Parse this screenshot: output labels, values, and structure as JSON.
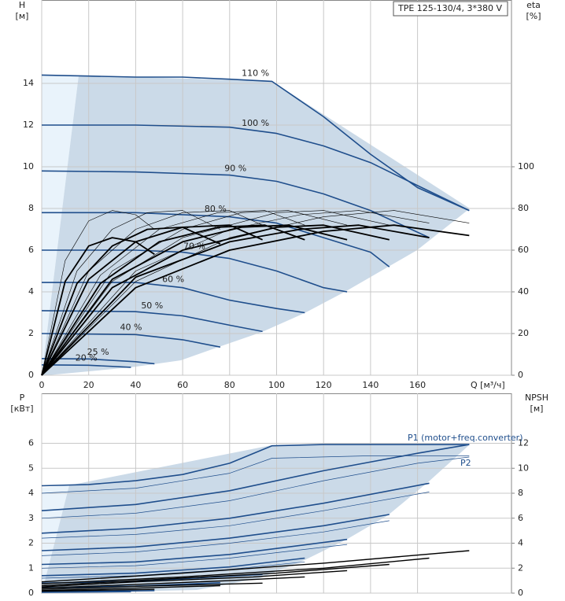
{
  "chart_data": [
    {
      "type": "line",
      "title": "TPE 125-130/4, 3*380 V",
      "ylabel": "H",
      "yunit": "[м]",
      "y2label": "eta",
      "y2unit": "[%]",
      "xlabel": "Q [м³/ч]",
      "xlim": [
        0,
        200
      ],
      "xticks": [
        0,
        20,
        40,
        60,
        80,
        100,
        120,
        140,
        160
      ],
      "ylim": [
        0,
        18
      ],
      "yticks": [
        0,
        2,
        4,
        6,
        8,
        10,
        12,
        14
      ],
      "y2lim": [
        0,
        180
      ],
      "y2ticks": [
        0,
        20,
        40,
        60,
        80,
        100
      ],
      "grid": true,
      "series": [
        {
          "name": "110 %",
          "color": "#1f4e8c",
          "line_width": 1.6,
          "x": [
            0,
            20,
            40,
            60,
            80,
            98,
            120,
            140,
            160,
            182
          ],
          "values": [
            14.4,
            14.35,
            14.3,
            14.3,
            14.2,
            14.1,
            12.4,
            10.6,
            9,
            7.9
          ]
        },
        {
          "name": "100 %",
          "color": "#1f4e8c",
          "line_width": 1.6,
          "x": [
            0,
            40,
            80,
            100,
            120,
            140,
            160,
            182
          ],
          "values": [
            12,
            12,
            11.9,
            11.6,
            11,
            10.2,
            9.1,
            7.9
          ]
        },
        {
          "name": "90 %",
          "color": "#1f4e8c",
          "line_width": 1.6,
          "x": [
            0,
            40,
            80,
            100,
            120,
            140,
            165
          ],
          "values": [
            9.8,
            9.75,
            9.6,
            9.3,
            8.7,
            7.9,
            6.6
          ]
        },
        {
          "name": "80 %",
          "color": "#1f4e8c",
          "line_width": 1.6,
          "x": [
            0,
            40,
            80,
            100,
            120,
            140,
            148
          ],
          "values": [
            7.8,
            7.8,
            7.6,
            7.3,
            6.6,
            5.9,
            5.2
          ]
        },
        {
          "name": "70 %",
          "color": "#1f4e8c",
          "line_width": 1.6,
          "x": [
            0,
            40,
            60,
            80,
            100,
            120,
            130
          ],
          "values": [
            6,
            6,
            5.9,
            5.6,
            5,
            4.2,
            4
          ]
        },
        {
          "name": "60 %",
          "color": "#1f4e8c",
          "line_width": 1.6,
          "x": [
            0,
            40,
            60,
            80,
            100,
            112
          ],
          "values": [
            4.45,
            4.45,
            4.2,
            3.6,
            3.2,
            3
          ]
        },
        {
          "name": "50 %",
          "color": "#1f4e8c",
          "line_width": 1.6,
          "x": [
            0,
            40,
            60,
            80,
            94
          ],
          "values": [
            3.1,
            3.05,
            2.85,
            2.4,
            2.1
          ]
        },
        {
          "name": "40 %",
          "color": "#1f4e8c",
          "line_width": 1.6,
          "x": [
            0,
            40,
            60,
            76
          ],
          "values": [
            2,
            1.95,
            1.7,
            1.35
          ]
        },
        {
          "name": "25 %",
          "color": "#1f4e8c",
          "line_width": 1.6,
          "x": [
            0,
            20,
            40,
            48
          ],
          "values": [
            0.8,
            0.78,
            0.65,
            0.55
          ]
        },
        {
          "name": "20 %",
          "color": "#1f4e8c",
          "line_width": 1.6,
          "x": [
            0,
            20,
            38
          ],
          "values": [
            0.5,
            0.48,
            0.38
          ]
        },
        {
          "axis": "y2",
          "color": "#000000",
          "line_width": 0.6,
          "x": [
            0,
            40,
            80,
            120,
            150,
            182
          ],
          "values": [
            0,
            45,
            66,
            76,
            79,
            73
          ]
        },
        {
          "axis": "y2",
          "color": "#000000",
          "line_width": 0.6,
          "x": [
            0,
            40,
            80,
            110,
            135,
            165
          ],
          "values": [
            0,
            50,
            70,
            77,
            79,
            73
          ]
        },
        {
          "axis": "y2",
          "color": "#000000",
          "line_width": 0.6,
          "x": [
            0,
            30,
            60,
            100,
            120,
            148
          ],
          "values": [
            0,
            45,
            66,
            78,
            79,
            72
          ]
        },
        {
          "axis": "y2",
          "color": "#000000",
          "line_width": 0.6,
          "x": [
            0,
            30,
            60,
            85,
            105,
            130
          ],
          "values": [
            0,
            50,
            70,
            78,
            79,
            72
          ]
        },
        {
          "axis": "y2",
          "color": "#000000",
          "line_width": 0.6,
          "x": [
            0,
            25,
            50,
            75,
            95,
            112
          ],
          "values": [
            0,
            48,
            70,
            78,
            79,
            72
          ]
        },
        {
          "axis": "y2",
          "color": "#000000",
          "line_width": 0.6,
          "x": [
            0,
            20,
            40,
            60,
            80,
            94
          ],
          "values": [
            0,
            50,
            70,
            78,
            79,
            72
          ]
        },
        {
          "axis": "y2",
          "color": "#000000",
          "line_width": 0.6,
          "x": [
            0,
            15,
            30,
            45,
            60,
            76
          ],
          "values": [
            0,
            50,
            70,
            78,
            79,
            70
          ]
        },
        {
          "axis": "y2",
          "color": "#000000",
          "line_width": 0.6,
          "x": [
            0,
            10,
            20,
            30,
            40,
            48
          ],
          "values": [
            0,
            55,
            74,
            79,
            77,
            70
          ]
        },
        {
          "axis": "y2",
          "color": "#000000",
          "line_width": 1.8,
          "x": [
            0,
            40,
            80,
            120,
            150,
            182
          ],
          "values": [
            0,
            42,
            60,
            69,
            72,
            67
          ]
        },
        {
          "axis": "y2",
          "color": "#000000",
          "line_width": 1.8,
          "x": [
            0,
            40,
            80,
            110,
            135,
            165
          ],
          "values": [
            0,
            47,
            64,
            70,
            72,
            66
          ]
        },
        {
          "axis": "y2",
          "color": "#000000",
          "line_width": 1.8,
          "x": [
            0,
            30,
            60,
            100,
            120,
            148
          ],
          "values": [
            0,
            42,
            60,
            71,
            72,
            65
          ]
        },
        {
          "axis": "y2",
          "color": "#000000",
          "line_width": 1.8,
          "x": [
            0,
            30,
            60,
            85,
            105,
            130
          ],
          "values": [
            0,
            46,
            64,
            71,
            72,
            65
          ]
        },
        {
          "axis": "y2",
          "color": "#000000",
          "line_width": 1.8,
          "x": [
            0,
            25,
            50,
            75,
            95,
            112
          ],
          "values": [
            0,
            44,
            64,
            71,
            72,
            65
          ]
        },
        {
          "axis": "y2",
          "color": "#000000",
          "line_width": 1.8,
          "x": [
            0,
            20,
            40,
            60,
            80,
            94
          ],
          "values": [
            0,
            46,
            64,
            71,
            72,
            65
          ]
        },
        {
          "axis": "y2",
          "color": "#000000",
          "line_width": 1.8,
          "x": [
            0,
            15,
            30,
            45,
            60,
            76
          ],
          "values": [
            0,
            44,
            62,
            70,
            71,
            63
          ]
        },
        {
          "axis": "y2",
          "color": "#000000",
          "line_width": 1.8,
          "x": [
            0,
            10,
            20,
            30,
            40,
            48
          ],
          "values": [
            0,
            45,
            62,
            66,
            64,
            58
          ]
        }
      ]
    },
    {
      "type": "line",
      "ylabel": "P",
      "yunit": "[кВт]",
      "y2label": "NPSH",
      "y2unit": "[м]",
      "xlim": [
        0,
        200
      ],
      "ylim": [
        0,
        8
      ],
      "yticks": [
        0,
        1,
        2,
        3,
        4,
        5,
        6
      ],
      "y2lim": [
        0,
        16
      ],
      "y2ticks": [
        0,
        2,
        4,
        6,
        8,
        10,
        12
      ],
      "grid": true,
      "annotations": [
        "P1 (motor+freq.converter)",
        "P2"
      ],
      "series": [
        {
          "color": "#1f4e8c",
          "line_width": 1.6,
          "x": [
            0,
            20,
            40,
            60,
            80,
            98,
            120,
            140,
            160,
            182
          ],
          "values": [
            4.3,
            4.35,
            4.5,
            4.75,
            5.2,
            5.9,
            5.95,
            5.95,
            5.95,
            5.95
          ]
        },
        {
          "color": "#1f4e8c",
          "line_width": 1.6,
          "x": [
            0,
            40,
            80,
            120,
            160,
            182
          ],
          "values": [
            3.3,
            3.55,
            4.1,
            4.9,
            5.6,
            5.95
          ]
        },
        {
          "color": "#1f4e8c",
          "line_width": 1.6,
          "x": [
            0,
            40,
            80,
            120,
            165
          ],
          "values": [
            2.4,
            2.6,
            3,
            3.6,
            4.4
          ]
        },
        {
          "color": "#1f4e8c",
          "line_width": 1.6,
          "x": [
            0,
            40,
            80,
            120,
            148
          ],
          "values": [
            1.7,
            1.85,
            2.2,
            2.7,
            3.15
          ]
        },
        {
          "color": "#1f4e8c",
          "line_width": 1.6,
          "x": [
            0,
            40,
            80,
            130
          ],
          "values": [
            1.15,
            1.25,
            1.55,
            2.15
          ]
        },
        {
          "color": "#1f4e8c",
          "line_width": 1.6,
          "x": [
            0,
            40,
            80,
            112
          ],
          "values": [
            0.7,
            0.8,
            1.05,
            1.4
          ]
        },
        {
          "color": "#1f4e8c",
          "line_width": 1.6,
          "x": [
            0,
            40,
            94
          ],
          "values": [
            0.4,
            0.48,
            0.75
          ]
        },
        {
          "color": "#1f4e8c",
          "line_width": 1.6,
          "x": [
            0,
            40,
            76
          ],
          "values": [
            0.22,
            0.28,
            0.42
          ]
        },
        {
          "color": "#1f4e8c",
          "line_width": 1.6,
          "x": [
            0,
            48
          ],
          "values": [
            0.05,
            0.1
          ]
        },
        {
          "color": "#1f4e8c",
          "line_width": 1.6,
          "x": [
            0,
            38
          ],
          "values": [
            0.03,
            0.06
          ]
        },
        {
          "color": "#1f4e8c",
          "line_width": 0.7,
          "x": [
            0,
            40,
            80,
            98,
            140,
            182
          ],
          "values": [
            4,
            4.2,
            4.8,
            5.4,
            5.5,
            5.5
          ]
        },
        {
          "color": "#1f4e8c",
          "line_width": 0.7,
          "x": [
            0,
            40,
            80,
            120,
            160,
            182
          ],
          "values": [
            3,
            3.2,
            3.7,
            4.5,
            5.2,
            5.45
          ]
        },
        {
          "color": "#1f4e8c",
          "line_width": 0.7,
          "x": [
            0,
            40,
            80,
            120,
            165
          ],
          "values": [
            2.2,
            2.35,
            2.7,
            3.3,
            4.05
          ]
        },
        {
          "color": "#1f4e8c",
          "line_width": 0.7,
          "x": [
            0,
            40,
            80,
            120,
            148
          ],
          "values": [
            1.5,
            1.65,
            2,
            2.45,
            2.9
          ]
        },
        {
          "color": "#1f4e8c",
          "line_width": 0.7,
          "x": [
            0,
            40,
            80,
            130
          ],
          "values": [
            1,
            1.1,
            1.4,
            1.95
          ]
        },
        {
          "color": "#1f4e8c",
          "line_width": 0.7,
          "x": [
            0,
            40,
            80,
            112
          ],
          "values": [
            0.6,
            0.7,
            0.95,
            1.25
          ]
        },
        {
          "axis": "y2",
          "color": "#000000",
          "line_width": 1.4,
          "x": [
            0,
            60,
            120,
            182
          ],
          "values": [
            0.9,
            1.6,
            2.4,
            3.4
          ]
        },
        {
          "axis": "y2",
          "color": "#000000",
          "line_width": 1.4,
          "x": [
            0,
            60,
            120,
            165
          ],
          "values": [
            0.75,
            1.3,
            2,
            2.8
          ]
        },
        {
          "axis": "y2",
          "color": "#000000",
          "line_width": 1.4,
          "x": [
            0,
            50,
            100,
            148
          ],
          "values": [
            0.6,
            1.1,
            1.6,
            2.3
          ]
        },
        {
          "axis": "y2",
          "color": "#000000",
          "line_width": 1.4,
          "x": [
            0,
            40,
            90,
            130
          ],
          "values": [
            0.5,
            0.9,
            1.3,
            1.8
          ]
        },
        {
          "axis": "y2",
          "color": "#000000",
          "line_width": 1.4,
          "x": [
            0,
            40,
            80,
            112
          ],
          "values": [
            0.4,
            0.7,
            1,
            1.3
          ]
        },
        {
          "axis": "y2",
          "color": "#000000",
          "line_width": 1.4,
          "x": [
            0,
            40,
            94
          ],
          "values": [
            0.3,
            0.55,
            0.8
          ]
        },
        {
          "axis": "y2",
          "color": "#000000",
          "line_width": 1.4,
          "x": [
            0,
            40,
            76
          ],
          "values": [
            0.2,
            0.4,
            0.6
          ]
        },
        {
          "axis": "y2",
          "color": "#000000",
          "line_width": 1.4,
          "x": [
            0,
            48
          ],
          "values": [
            0.15,
            0.3
          ]
        }
      ]
    }
  ]
}
